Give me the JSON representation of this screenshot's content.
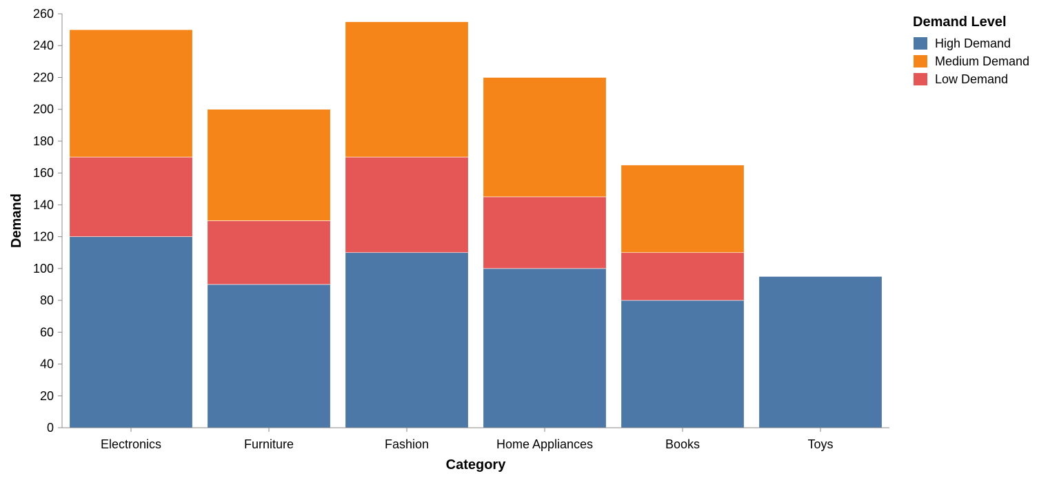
{
  "chart_data": {
    "type": "bar",
    "stacked": true,
    "xlabel": "Category",
    "ylabel": "Demand",
    "ylim": [
      0,
      260
    ],
    "yticks": [
      0,
      20,
      40,
      60,
      80,
      100,
      120,
      140,
      160,
      180,
      200,
      220,
      240,
      260
    ],
    "categories": [
      "Electronics",
      "Furniture",
      "Fashion",
      "Home Appliances",
      "Books",
      "Toys"
    ],
    "series": [
      {
        "name": "High Demand",
        "color": "#4c78a8",
        "values": [
          120,
          90,
          110,
          100,
          80,
          95
        ]
      },
      {
        "name": "Low Demand",
        "color": "#e45756",
        "values": [
          50,
          40,
          60,
          45,
          30,
          0
        ]
      },
      {
        "name": "Medium Demand",
        "color": "#f58518",
        "values": [
          80,
          70,
          85,
          75,
          55,
          0
        ]
      }
    ],
    "legend": {
      "title": "Demand Level",
      "position": "top-right",
      "entries": [
        {
          "label": "High Demand",
          "color": "#4c78a8"
        },
        {
          "label": "Medium Demand",
          "color": "#f58518"
        },
        {
          "label": "Low Demand",
          "color": "#e45756"
        }
      ]
    },
    "grid": false
  }
}
